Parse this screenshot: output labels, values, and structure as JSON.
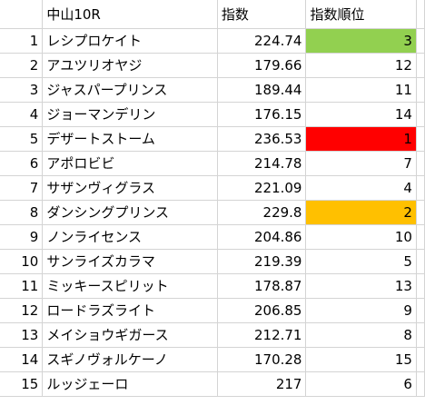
{
  "headers": {
    "race": "中山10R",
    "index": "指数",
    "rank": "指数順位"
  },
  "colors": {
    "rank1": "#ff0000",
    "rank2": "#ffc000",
    "rank3": "#92d050"
  },
  "rows": [
    {
      "num": "1",
      "name": "レシプロケイト",
      "index": "224.74",
      "rank": "3"
    },
    {
      "num": "2",
      "name": "アユツリオヤジ",
      "index": "179.66",
      "rank": "12"
    },
    {
      "num": "3",
      "name": "ジャスパープリンス",
      "index": "189.44",
      "rank": "11"
    },
    {
      "num": "4",
      "name": "ジョーマンデリン",
      "index": "176.15",
      "rank": "14"
    },
    {
      "num": "5",
      "name": "デザートストーム",
      "index": "236.53",
      "rank": "1"
    },
    {
      "num": "6",
      "name": "アポロビビ",
      "index": "214.78",
      "rank": "7"
    },
    {
      "num": "7",
      "name": "サザンヴィグラス",
      "index": "221.09",
      "rank": "4"
    },
    {
      "num": "8",
      "name": "ダンシングプリンス",
      "index": "229.8",
      "rank": "2"
    },
    {
      "num": "9",
      "name": "ノンライセンス",
      "index": "204.86",
      "rank": "10"
    },
    {
      "num": "10",
      "name": "サンライズカラマ",
      "index": "219.39",
      "rank": "5"
    },
    {
      "num": "11",
      "name": "ミッキースピリット",
      "index": "178.87",
      "rank": "13"
    },
    {
      "num": "12",
      "name": "ロードラズライト",
      "index": "206.85",
      "rank": "9"
    },
    {
      "num": "13",
      "name": "メイショウギガース",
      "index": "212.71",
      "rank": "8"
    },
    {
      "num": "14",
      "name": "スギノヴォルケーノ",
      "index": "170.28",
      "rank": "15"
    },
    {
      "num": "15",
      "name": "ルッジェーロ",
      "index": "217",
      "rank": "6"
    }
  ]
}
